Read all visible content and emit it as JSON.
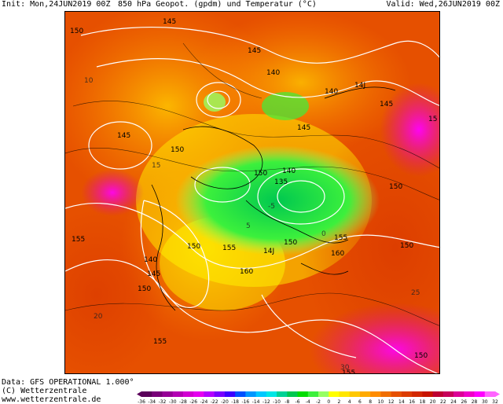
{
  "header": {
    "init": "Init: Mon,24JUN2019 00Z",
    "title": "850 hPa Geopot. (gpdm) und Temperatur (°C)",
    "valid": "Valid: Wed,26JUN2019 00Z"
  },
  "footer": {
    "data_line": "Data: GFS OPERATIONAL 1.000°",
    "copyright": "(C) Wetterzentrale",
    "url": "www.wetterzentrale.de"
  },
  "colorbar": {
    "labels": [
      "-36",
      "-34",
      "-32",
      "-30",
      "-28",
      "-26",
      "-24",
      "-22",
      "-20",
      "-18",
      "-16",
      "-14",
      "-12",
      "-10",
      "-8",
      "-6",
      "-4",
      "-2",
      "0",
      "2",
      "4",
      "6",
      "8",
      "10",
      "12",
      "14",
      "16",
      "18",
      "20",
      "22",
      "24",
      "26",
      "28",
      "30",
      "32"
    ],
    "colors": [
      "#5a005a",
      "#780078",
      "#960096",
      "#b400b4",
      "#d200d2",
      "#e600f0",
      "#b400ff",
      "#7800ff",
      "#3c00ff",
      "#0050ff",
      "#0096ff",
      "#00c8ff",
      "#00e6e6",
      "#00d296",
      "#00c850",
      "#00dc00",
      "#3cf03c",
      "#96ff64",
      "#ffff00",
      "#ffe600",
      "#ffc800",
      "#ffaa00",
      "#ff8c00",
      "#f06e00",
      "#e65000",
      "#dc3c00",
      "#d22800",
      "#c81400",
      "#be0032",
      "#c8005a",
      "#dc0096",
      "#f000c8",
      "#ff00ff",
      "#ff64ff"
    ]
  },
  "map": {
    "contour_labels": [
      {
        "text": "150"
      },
      {
        "text": "145"
      },
      {
        "text": "145"
      },
      {
        "text": "140"
      },
      {
        "text": "14J"
      },
      {
        "text": "140"
      },
      {
        "text": "145"
      },
      {
        "text": "145"
      },
      {
        "text": "150"
      },
      {
        "text": "145"
      },
      {
        "text": "150"
      },
      {
        "text": "140"
      },
      {
        "text": "135"
      },
      {
        "text": "150"
      },
      {
        "text": "155"
      },
      {
        "text": "155"
      },
      {
        "text": "150"
      },
      {
        "text": "155"
      },
      {
        "text": "14J"
      },
      {
        "text": "150"
      },
      {
        "text": "160"
      },
      {
        "text": "140"
      },
      {
        "text": "145"
      },
      {
        "text": "150"
      },
      {
        "text": "160"
      },
      {
        "text": "155"
      },
      {
        "text": "150"
      },
      {
        "text": "155"
      },
      {
        "text": "150"
      },
      {
        "text": "15"
      }
    ],
    "temp_labels": [
      "10",
      "15",
      "20",
      "25",
      "30",
      "5",
      "0",
      "-5"
    ]
  }
}
